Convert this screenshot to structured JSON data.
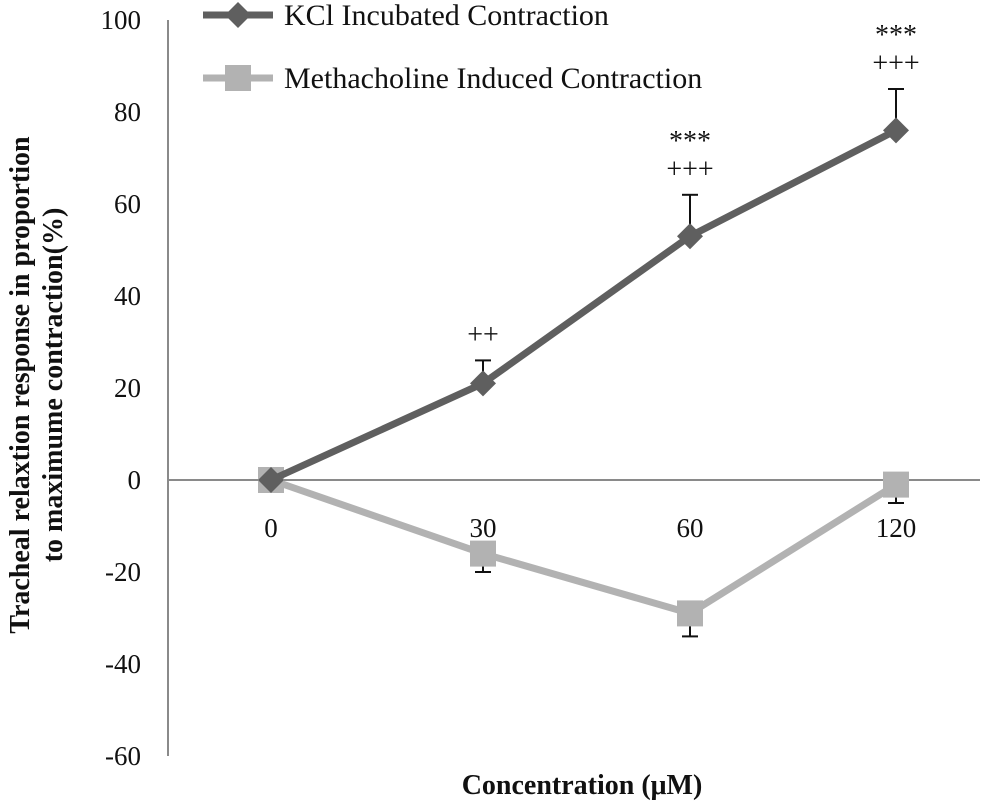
{
  "chart_data": {
    "type": "line",
    "xlabel": "Concentration (μM)",
    "ylabel_lines": [
      "Tracheal relaxtion response in proportion",
      "to maximume contraction(%)"
    ],
    "categories": [
      "0",
      "30",
      "60",
      "120"
    ],
    "ylim": [
      -60,
      100
    ],
    "yticks": [
      "100",
      "80",
      "60",
      "40",
      "20",
      "0",
      "-20",
      "-40",
      "-60"
    ],
    "grid": false,
    "legend_position": "top-left",
    "series": [
      {
        "name": "KCl Incubated Contraction",
        "color": "#5f5f5f",
        "marker": "diamond",
        "values": [
          0,
          21,
          53,
          76
        ],
        "errors": [
          0,
          5,
          9,
          9
        ],
        "significance": [
          [],
          [
            "++"
          ],
          [
            "***",
            "+++"
          ],
          [
            "***",
            "+++"
          ]
        ]
      },
      {
        "name": "Methacholine Induced Contraction",
        "color": "#b2b2b2",
        "marker": "square",
        "values": [
          0,
          -16,
          -29,
          -1
        ],
        "errors": [
          0,
          4,
          5,
          4
        ],
        "significance": [
          [],
          [],
          [],
          []
        ]
      }
    ]
  }
}
